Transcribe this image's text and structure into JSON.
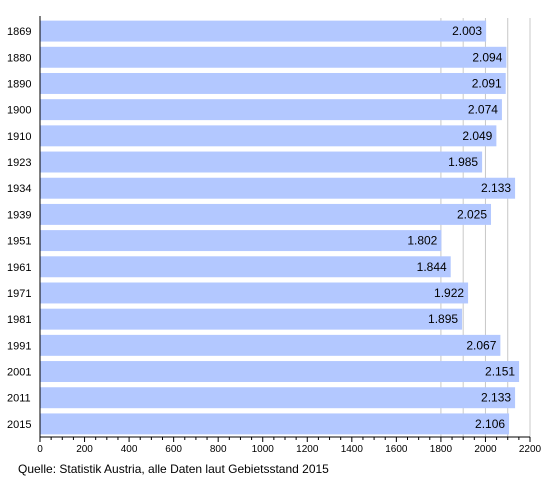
{
  "chart_data": {
    "type": "bar",
    "orientation": "horizontal",
    "categories": [
      "1869",
      "1880",
      "1890",
      "1900",
      "1910",
      "1923",
      "1934",
      "1939",
      "1951",
      "1961",
      "1971",
      "1981",
      "1991",
      "2001",
      "2011",
      "2015"
    ],
    "values": [
      2003,
      2094,
      2091,
      2074,
      2049,
      1985,
      2133,
      2025,
      1802,
      1844,
      1922,
      1895,
      2067,
      2151,
      2133,
      2106
    ],
    "value_labels": [
      "2.003",
      "2.094",
      "2.091",
      "2.074",
      "2.049",
      "1.985",
      "2.133",
      "2.025",
      "1.802",
      "1.844",
      "1.922",
      "1.895",
      "2.067",
      "2.151",
      "2.133",
      "2.106"
    ],
    "x_ticks": [
      "0",
      "200",
      "400",
      "600",
      "800",
      "1000",
      "1200",
      "1400",
      "1600",
      "1800",
      "2000",
      "2200"
    ],
    "xlim": [
      0,
      2200
    ],
    "grid": "vertical",
    "bar_color": "#b3c8ff",
    "source": "Quelle: Statistik Austria, alle Daten laut Gebietsstand 2015"
  }
}
